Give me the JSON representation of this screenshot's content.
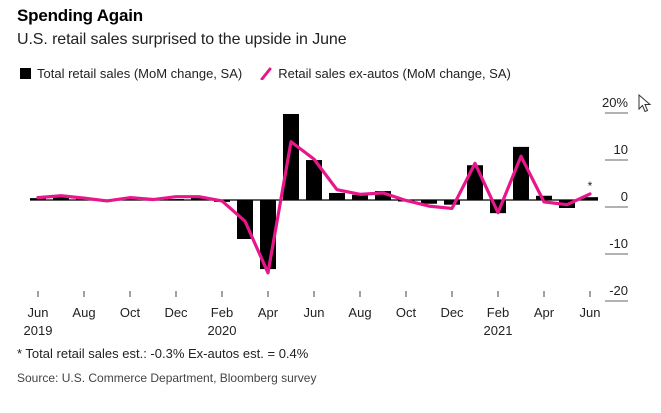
{
  "header": {
    "title": "Spending Again",
    "subtitle": "U.S. retail sales surprised to the upside in June"
  },
  "legend": [
    {
      "label": "Total retail sales (MoM change, SA)",
      "swatch": "square",
      "color": "#000000"
    },
    {
      "label": "Retail sales ex-autos (MoM change, SA)",
      "swatch": "line",
      "color": "#e8168b"
    }
  ],
  "footnote": "* Total retail sales est.: -0.3% Ex-autos est. = 0.4%",
  "source": "Source: U.S. Commerce Department, Bloomberg survey",
  "chart_data": {
    "type": "bar",
    "title": "Spending Again",
    "subtitle": "U.S. retail sales surprised to the upside in June",
    "xlabel": "",
    "ylabel": "",
    "ylim": [
      -20,
      20
    ],
    "yticks": [
      20,
      10,
      0,
      -10,
      -20
    ],
    "ytick_labels": [
      "20%",
      "10",
      "0",
      "-10",
      "-20"
    ],
    "y_axis_position": "right",
    "grid": false,
    "legend_position": "top-left",
    "x": [
      "Jun 2019",
      "Jul 2019",
      "Aug 2019",
      "Sep 2019",
      "Oct 2019",
      "Nov 2019",
      "Dec 2019",
      "Jan 2020",
      "Feb 2020",
      "Mar 2020",
      "Apr 2020",
      "May 2020",
      "Jun 2020",
      "Jul 2020",
      "Aug 2020",
      "Sep 2020",
      "Oct 2020",
      "Nov 2020",
      "Dec 2020",
      "Jan 2021",
      "Feb 2021",
      "Mar 2021",
      "Apr 2021",
      "May 2021",
      "Jun 2021"
    ],
    "xtick_labels": [
      {
        "month": "Jun",
        "year": "2019"
      },
      {
        "month": "Aug",
        "year": ""
      },
      {
        "month": "Oct",
        "year": ""
      },
      {
        "month": "Dec",
        "year": ""
      },
      {
        "month": "Feb",
        "year": "2020"
      },
      {
        "month": "Apr",
        "year": ""
      },
      {
        "month": "Jun",
        "year": ""
      },
      {
        "month": "Aug",
        "year": ""
      },
      {
        "month": "Oct",
        "year": ""
      },
      {
        "month": "Dec",
        "year": ""
      },
      {
        "month": "Feb",
        "year": "2021"
      },
      {
        "month": "Apr",
        "year": ""
      },
      {
        "month": "Jun",
        "year": ""
      }
    ],
    "series": [
      {
        "name": "Total retail sales (MoM change, SA)",
        "type": "bar",
        "color": "#000000",
        "values": [
          0.4,
          0.6,
          0.5,
          -0.3,
          0.3,
          0.2,
          0.2,
          0.6,
          -0.4,
          -8.3,
          -14.7,
          18.3,
          8.5,
          1.5,
          1.1,
          1.9,
          -0.1,
          -0.8,
          -1.0,
          7.4,
          -2.8,
          11.3,
          0.9,
          -1.7,
          0.6
        ]
      },
      {
        "name": "Retail sales ex-autos (MoM change, SA)",
        "type": "line",
        "color": "#e8168b",
        "values": [
          0.5,
          0.9,
          0.4,
          -0.2,
          0.5,
          0.1,
          0.7,
          0.7,
          -0.2,
          -4.5,
          -15.5,
          12.4,
          8.7,
          2.2,
          1.2,
          1.5,
          -0.1,
          -1.3,
          -1.8,
          7.8,
          -2.7,
          9.3,
          -0.4,
          -1.0,
          1.3
        ]
      }
    ],
    "annotations": [
      {
        "x": "Jun 2021",
        "text": "*"
      }
    ]
  }
}
